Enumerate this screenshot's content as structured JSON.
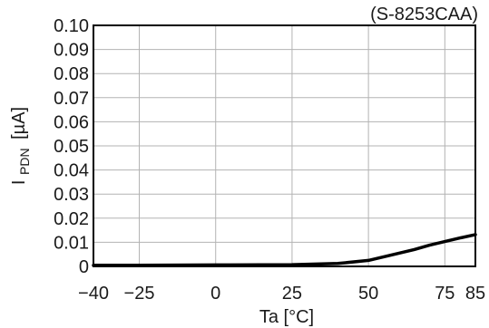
{
  "chart_data": {
    "type": "line",
    "title": "(S-8253CAA)",
    "xlabel": "Ta [°C]",
    "ylabel": "I",
    "ylabel_subscript": "PDN",
    "ylabel_unit": "[µA]",
    "xlim": [
      -40,
      85
    ],
    "ylim": [
      0,
      0.1
    ],
    "x_ticks": [
      -40,
      -25,
      0,
      25,
      50,
      75,
      85
    ],
    "x_tick_labels": [
      "−40",
      "−25",
      "0",
      "25",
      "50",
      "75",
      "85"
    ],
    "x_grid": [
      -25,
      0,
      25,
      50,
      75
    ],
    "y_ticks": [
      0,
      0.01,
      0.02,
      0.03,
      0.04,
      0.05,
      0.06,
      0.07,
      0.08,
      0.09,
      0.1
    ],
    "y_tick_labels": [
      "0",
      "0.01",
      "0.02",
      "0.03",
      "0.04",
      "0.05",
      "0.06",
      "0.07",
      "0.08",
      "0.09",
      "0.10"
    ],
    "grid": true,
    "legend": "none",
    "line_color": "#000000",
    "grid_color": "#b3b3b3",
    "series": [
      {
        "x": [
          -40,
          -25,
          0,
          25,
          40,
          50,
          55,
          60,
          65,
          70,
          75,
          80,
          85
        ],
        "values": [
          0.0005,
          0.0005,
          0.0006,
          0.0007,
          0.0012,
          0.0025,
          0.004,
          0.0055,
          0.007,
          0.0088,
          0.0103,
          0.0118,
          0.0132
        ]
      }
    ]
  }
}
